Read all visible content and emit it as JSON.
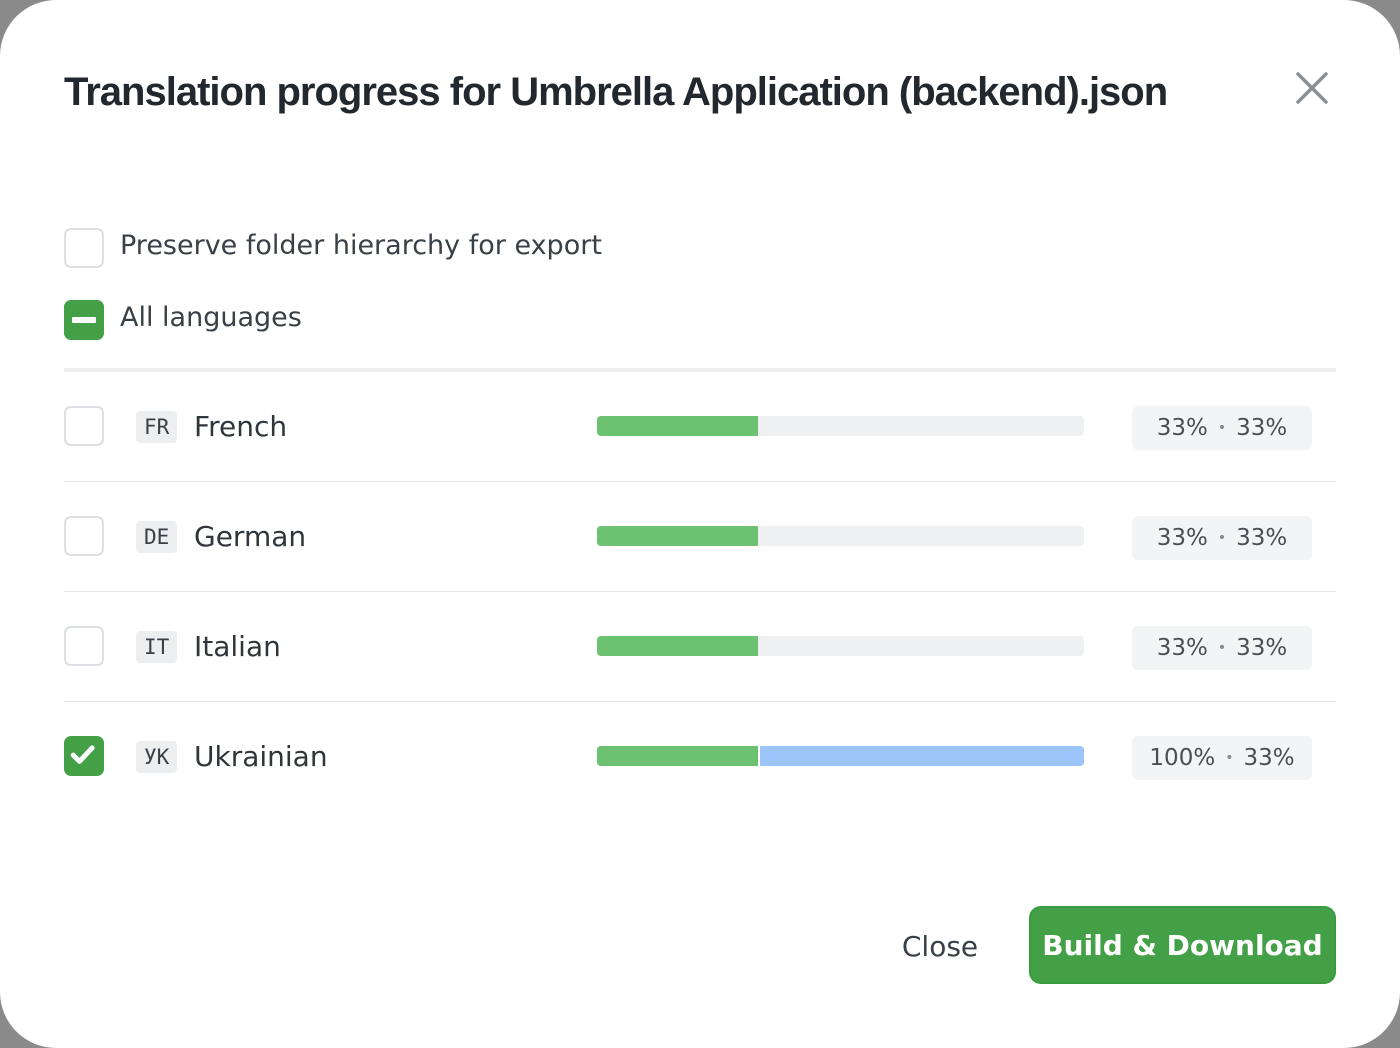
{
  "dialog": {
    "title": "Translation progress for Umbrella Application (backend).json"
  },
  "options": {
    "preserve_label": "Preserve folder hierarchy for export",
    "preserve_checked": false,
    "all_label": "All languages",
    "all_state": "indeterminate"
  },
  "languages": [
    {
      "code": "FR",
      "name": "French",
      "checked": false,
      "translated": 33,
      "approved": 33,
      "pct_a": "33%",
      "pct_b": "33%"
    },
    {
      "code": "DE",
      "name": "German",
      "checked": false,
      "translated": 33,
      "approved": 33,
      "pct_a": "33%",
      "pct_b": "33%"
    },
    {
      "code": "IT",
      "name": "Italian",
      "checked": false,
      "translated": 33,
      "approved": 33,
      "pct_a": "33%",
      "pct_b": "33%"
    },
    {
      "code": "УК",
      "name": "Ukrainian",
      "checked": true,
      "translated": 100,
      "approved": 33,
      "pct_a": "100%",
      "pct_b": "33%"
    }
  ],
  "separator": "•",
  "footer": {
    "close_label": "Close",
    "build_label": "Build & Download"
  },
  "colors": {
    "accent": "#43a047",
    "approved": "#6cc270",
    "translated": "#9cc5fb"
  }
}
